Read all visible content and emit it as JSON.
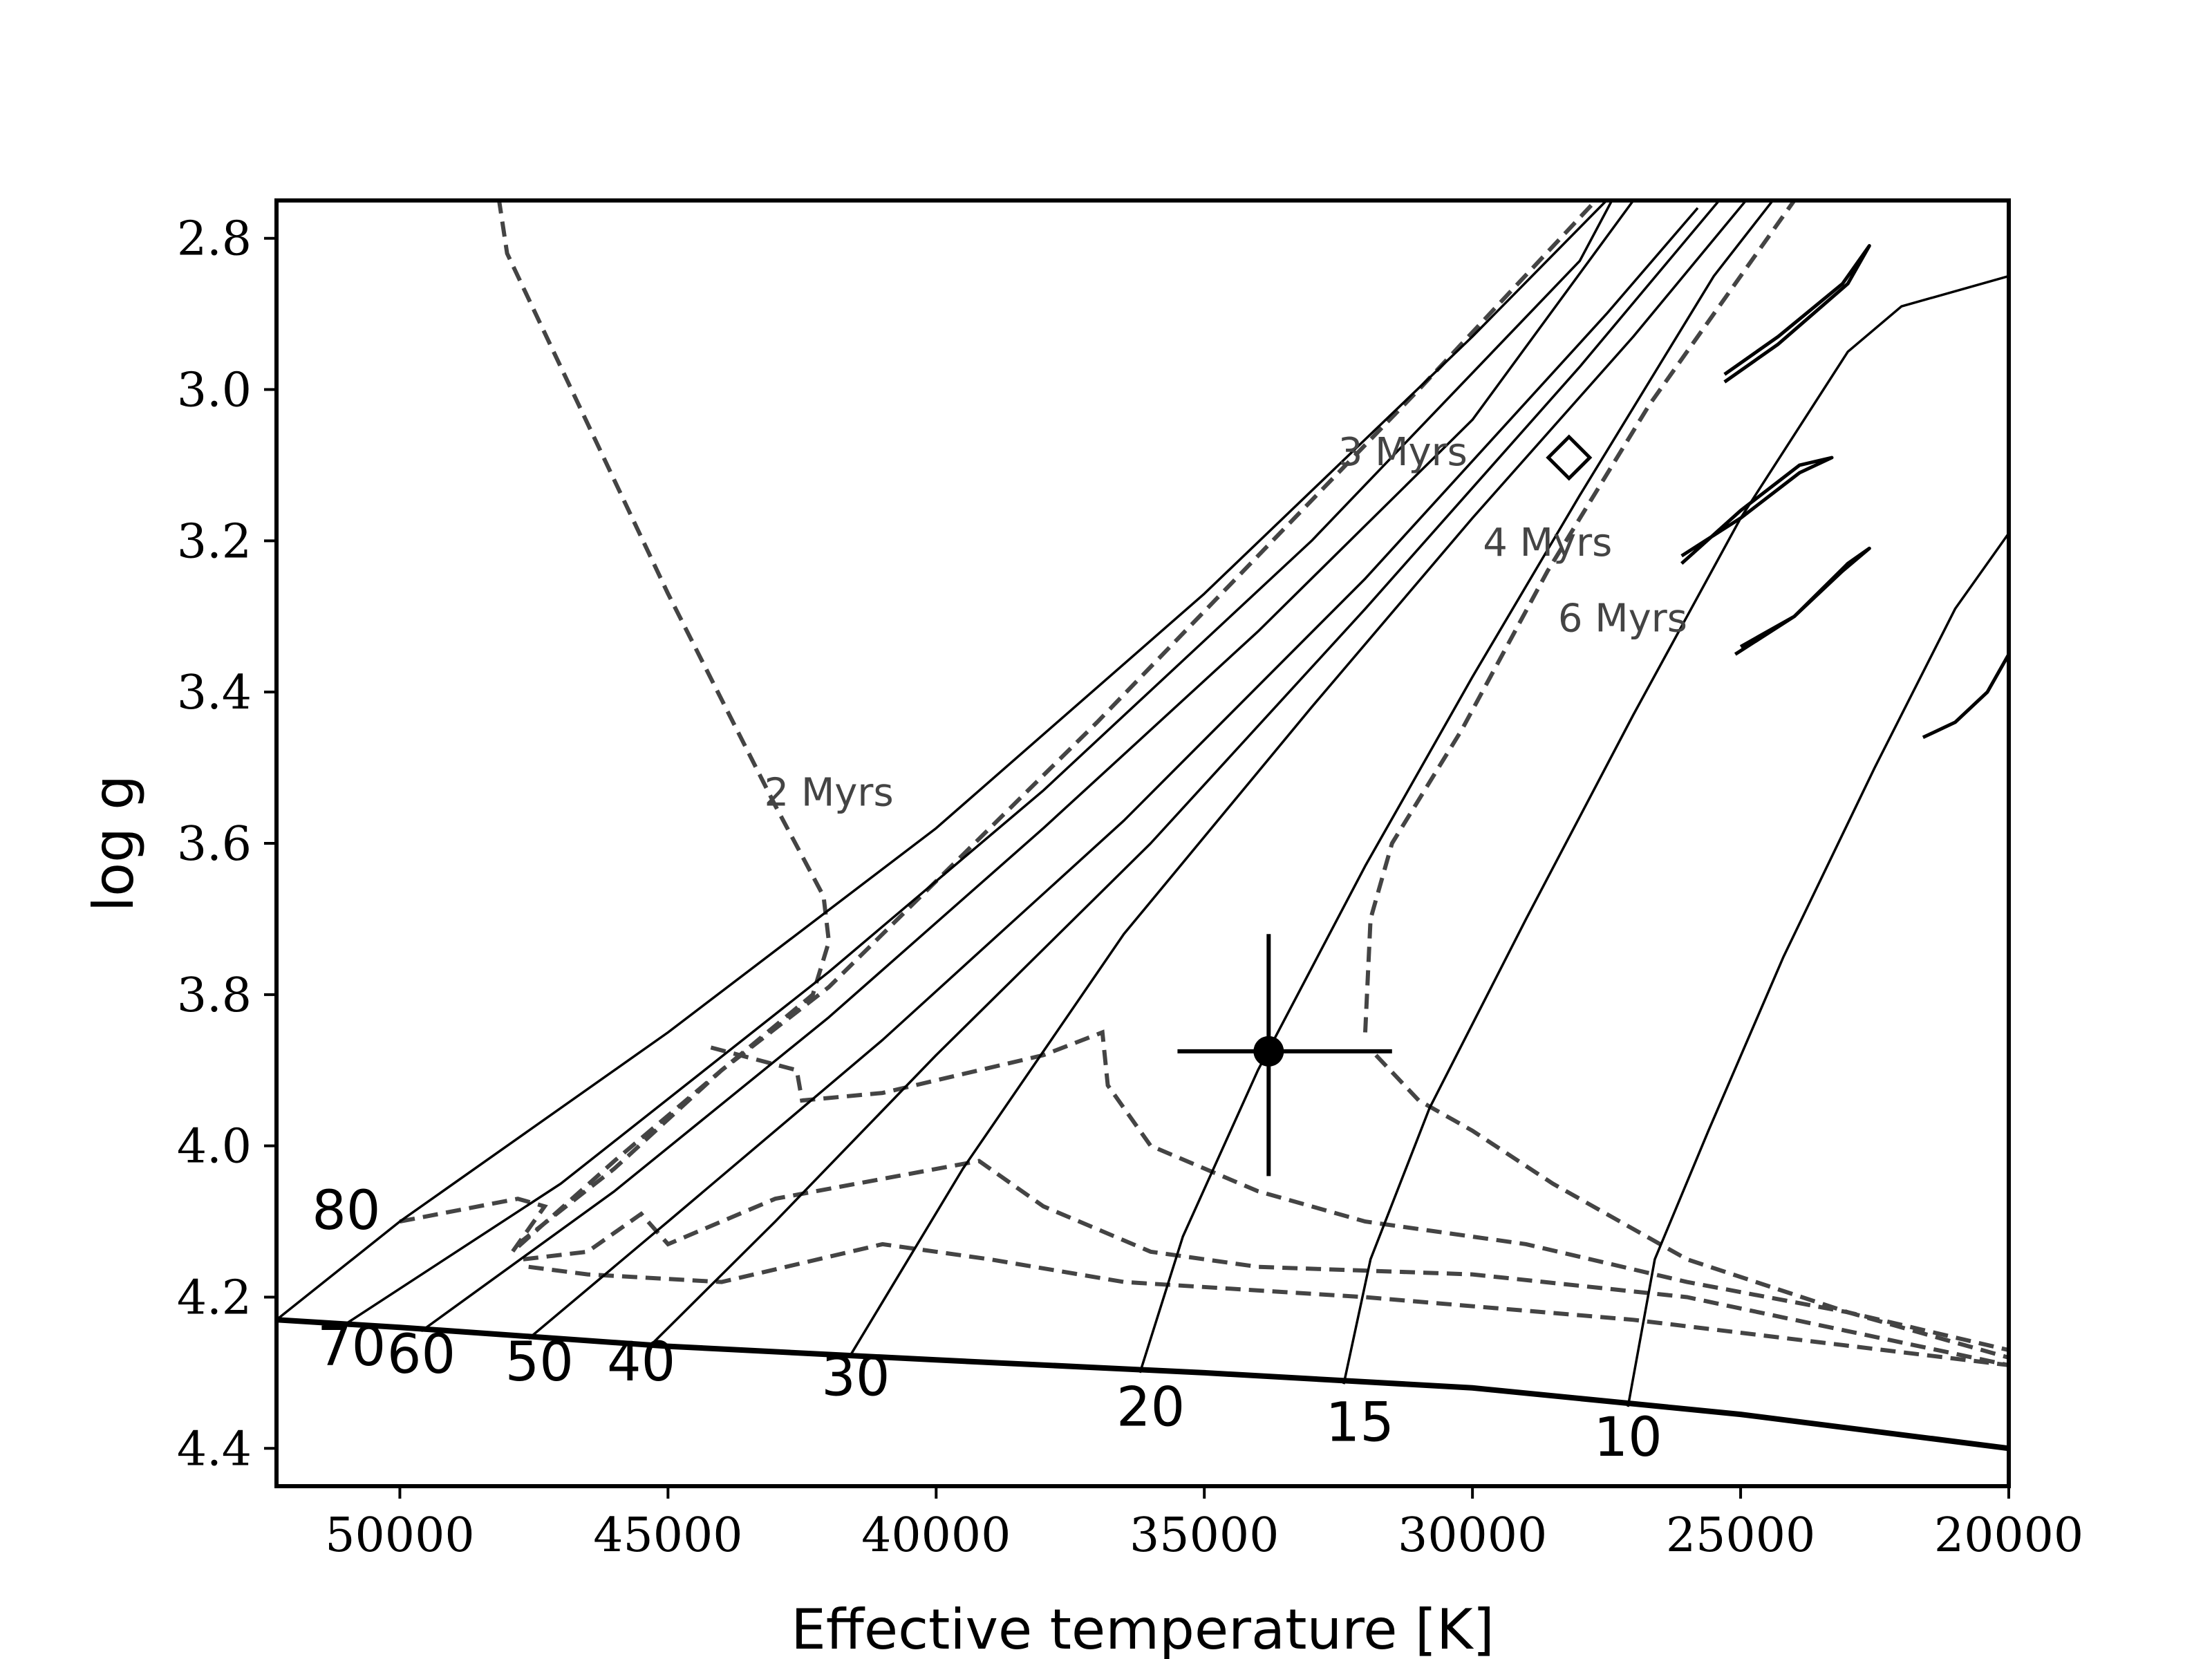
{
  "chart_data": {
    "type": "line",
    "title": "",
    "xlabel": "Effective temperature [K]",
    "ylabel": "log g",
    "xlim": [
      52300,
      20000
    ],
    "ylim": [
      4.45,
      2.75
    ],
    "xticks": [
      50000,
      45000,
      40000,
      35000,
      30000,
      25000,
      20000
    ],
    "yticks": [
      2.8,
      3.0,
      3.2,
      3.4,
      3.6,
      3.8,
      4.0,
      4.2,
      4.4
    ],
    "xtick_labels": [
      "50000",
      "45000",
      "40000",
      "35000",
      "30000",
      "25000",
      "20000"
    ],
    "ytick_labels": [
      "2.8",
      "3.0",
      "3.2",
      "3.4",
      "3.6",
      "3.8",
      "4.0",
      "4.2",
      "4.4"
    ],
    "colors": {
      "tracks": "#000000",
      "isochrones": "#444444",
      "zams": "#000000"
    },
    "zams": [
      [
        52300,
        4.23
      ],
      [
        50000,
        4.24
      ],
      [
        45000,
        4.265
      ],
      [
        40000,
        4.283
      ],
      [
        35000,
        4.3
      ],
      [
        30000,
        4.32
      ],
      [
        25000,
        4.355
      ],
      [
        20000,
        4.4
      ]
    ],
    "tracks": [
      {
        "mass": "80",
        "label": "80",
        "points": [
          [
            52300,
            4.23
          ],
          [
            50000,
            4.1
          ],
          [
            45000,
            3.85
          ],
          [
            40000,
            3.58
          ],
          [
            35000,
            3.27
          ],
          [
            30000,
            2.93
          ],
          [
            27500,
            2.75
          ]
        ]
      },
      {
        "mass": "70",
        "label": "70",
        "points": [
          [
            51000,
            4.235
          ],
          [
            47000,
            4.05
          ],
          [
            42000,
            3.77
          ],
          [
            38000,
            3.53
          ],
          [
            33000,
            3.2
          ],
          [
            28000,
            2.83
          ],
          [
            27400,
            2.75
          ]
        ]
      },
      {
        "mass": "60",
        "label": "60",
        "points": [
          [
            49600,
            4.245
          ],
          [
            46000,
            4.06
          ],
          [
            42000,
            3.83
          ],
          [
            38000,
            3.58
          ],
          [
            34000,
            3.32
          ],
          [
            30000,
            3.04
          ],
          [
            27000,
            2.75
          ]
        ]
      },
      {
        "mass": "50",
        "label": "50",
        "points": [
          [
            47600,
            4.255
          ],
          [
            45000,
            4.1
          ],
          [
            41000,
            3.86
          ],
          [
            36500,
            3.57
          ],
          [
            32000,
            3.25
          ],
          [
            27500,
            2.9
          ],
          [
            25800,
            2.76
          ]
        ]
      },
      {
        "mass": "40",
        "label": "40",
        "points": [
          [
            45300,
            4.262
          ],
          [
            43000,
            4.1
          ],
          [
            40000,
            3.88
          ],
          [
            36000,
            3.6
          ],
          [
            32000,
            3.29
          ],
          [
            28000,
            2.97
          ],
          [
            25400,
            2.75
          ]
        ]
      },
      {
        "mass": "30",
        "label": "30",
        "points": [
          [
            41600,
            4.277
          ],
          [
            39500,
            4.03
          ],
          [
            36500,
            3.72
          ],
          [
            33000,
            3.42
          ],
          [
            30000,
            3.17
          ],
          [
            27000,
            2.93
          ],
          [
            24900,
            2.75
          ]
        ]
      },
      {
        "mass": "20",
        "label": "20",
        "points": [
          [
            36200,
            4.3
          ],
          [
            35400,
            4.12
          ],
          [
            34000,
            3.9
          ],
          [
            32000,
            3.63
          ],
          [
            30000,
            3.38
          ],
          [
            28000,
            3.14
          ],
          [
            25500,
            2.85
          ],
          [
            24400,
            2.75
          ]
        ]
      },
      {
        "mass": "15",
        "label": "15",
        "points": [
          [
            32400,
            4.315
          ],
          [
            31900,
            4.15
          ],
          [
            30800,
            3.95
          ],
          [
            29000,
            3.7
          ],
          [
            27000,
            3.43
          ],
          [
            25000,
            3.17
          ],
          [
            23000,
            2.95
          ],
          [
            22000,
            2.89
          ],
          [
            20000,
            2.85
          ]
        ]
      },
      {
        "mass": "10",
        "label": "10",
        "points": [
          [
            27100,
            4.345
          ],
          [
            26600,
            4.15
          ],
          [
            25600,
            3.98
          ],
          [
            24200,
            3.75
          ],
          [
            22500,
            3.5
          ],
          [
            21000,
            3.29
          ],
          [
            20000,
            3.19
          ]
        ]
      }
    ],
    "loops": [
      [
        [
          25300,
          2.99
        ],
        [
          24300,
          2.94
        ],
        [
          23000,
          2.86
        ],
        [
          22600,
          2.81
        ],
        [
          23100,
          2.86
        ],
        [
          24300,
          2.93
        ],
        [
          25300,
          2.98
        ]
      ],
      [
        [
          26100,
          3.23
        ],
        [
          25000,
          3.16
        ],
        [
          23900,
          3.1
        ],
        [
          23300,
          3.09
        ],
        [
          23900,
          3.11
        ],
        [
          25000,
          3.17
        ],
        [
          26100,
          3.22
        ]
      ],
      [
        [
          25100,
          3.35
        ],
        [
          24000,
          3.3
        ],
        [
          23000,
          3.23
        ],
        [
          22600,
          3.21
        ],
        [
          23100,
          3.24
        ],
        [
          24000,
          3.3
        ],
        [
          25000,
          3.34
        ]
      ],
      [
        [
          21600,
          3.46
        ],
        [
          21000,
          3.44
        ],
        [
          20400,
          3.4
        ],
        [
          20000,
          3.35
        ]
      ]
    ],
    "isochrones": [
      {
        "name": "2 Myrs",
        "label": "2 Myrs",
        "points": [
          [
            50000,
            4.1
          ],
          [
            47800,
            4.07
          ],
          [
            47300,
            4.08
          ],
          [
            47900,
            4.14
          ],
          [
            46000,
            4.02
          ],
          [
            44000,
            3.9
          ],
          [
            42300,
            3.8
          ],
          [
            42000,
            3.73
          ],
          [
            42100,
            3.67
          ],
          [
            43000,
            3.55
          ],
          [
            45000,
            3.27
          ],
          [
            48000,
            2.82
          ],
          [
            48150,
            2.75
          ]
        ]
      },
      {
        "name": "3 Myrs",
        "label": "3 Myrs",
        "points": [
          [
            47800,
            4.13
          ],
          [
            46000,
            4.03
          ],
          [
            44000,
            3.9
          ],
          [
            42000,
            3.79
          ],
          [
            40000,
            3.65
          ],
          [
            37000,
            3.44
          ],
          [
            34000,
            3.22
          ],
          [
            31000,
            3.0
          ],
          [
            27700,
            2.75
          ]
        ]
      },
      {
        "name": "4 Myrs",
        "label": "4 Myrs",
        "points": [
          [
            47700,
            4.15
          ],
          [
            46500,
            4.14
          ],
          [
            45500,
            4.09
          ],
          [
            45000,
            4.13
          ],
          [
            43000,
            4.07
          ],
          [
            39200,
            4.02
          ],
          [
            38000,
            4.08
          ],
          [
            36000,
            4.14
          ],
          [
            34000,
            4.16
          ],
          [
            30000,
            4.17
          ],
          [
            26000,
            4.2
          ],
          [
            20000,
            4.29
          ]
        ]
      },
      {
        "name": "5 Myrs",
        "label": "",
        "points": [
          [
            47600,
            4.16
          ],
          [
            46500,
            4.17
          ],
          [
            44000,
            4.18
          ],
          [
            41000,
            4.13
          ],
          [
            39000,
            4.15
          ],
          [
            36500,
            4.18
          ],
          [
            32000,
            4.2
          ],
          [
            27000,
            4.23
          ],
          [
            20000,
            4.29
          ]
        ]
      },
      {
        "name": "6 Myrs",
        "label": "6 Myrs",
        "points": [
          [
            44200,
            3.87
          ],
          [
            42600,
            3.9
          ],
          [
            42500,
            3.94
          ],
          [
            41000,
            3.93
          ],
          [
            38000,
            3.88
          ],
          [
            36900,
            3.85
          ],
          [
            36800,
            3.92
          ],
          [
            36000,
            4.0
          ],
          [
            34000,
            4.06
          ],
          [
            32000,
            4.1
          ],
          [
            29000,
            4.13
          ],
          [
            26000,
            4.18
          ],
          [
            23000,
            4.22
          ],
          [
            20000,
            4.27
          ]
        ]
      },
      {
        "name": "8 Myrs",
        "label": "",
        "points": [
          [
            32000,
            3.85
          ],
          [
            31900,
            3.7
          ],
          [
            31500,
            3.6
          ],
          [
            30200,
            3.45
          ],
          [
            28600,
            3.24
          ],
          [
            26700,
            3.02
          ],
          [
            24300,
            2.78
          ],
          [
            24000,
            2.75
          ]
        ]
      },
      {
        "name": "8 Myrs tail",
        "label": "",
        "points": [
          [
            31800,
            3.88
          ],
          [
            31000,
            3.94
          ],
          [
            30000,
            3.98
          ],
          [
            28500,
            4.05
          ],
          [
            26000,
            4.15
          ],
          [
            23000,
            4.22
          ],
          [
            20000,
            4.28
          ]
        ]
      }
    ],
    "mass_labels": [
      {
        "text": "80",
        "teff": 51000,
        "logg": 4.11
      },
      {
        "text": "70",
        "teff": 50900,
        "logg": 4.29
      },
      {
        "text": "60",
        "teff": 49600,
        "logg": 4.3
      },
      {
        "text": "50",
        "teff": 47400,
        "logg": 4.31
      },
      {
        "text": "40",
        "teff": 45500,
        "logg": 4.31
      },
      {
        "text": "30",
        "teff": 41500,
        "logg": 4.33
      },
      {
        "text": "20",
        "teff": 36000,
        "logg": 4.37
      },
      {
        "text": "15",
        "teff": 32100,
        "logg": 4.39
      },
      {
        "text": "10",
        "teff": 27100,
        "logg": 4.41
      }
    ],
    "isochrone_labels": [
      {
        "text": "2 Myrs",
        "teff": 42000,
        "logg": 3.55
      },
      {
        "text": "3 Myrs",
        "teff": 31300,
        "logg": 3.1
      },
      {
        "text": "4 Myrs",
        "teff": 28600,
        "logg": 3.22
      },
      {
        "text": "6 Myrs",
        "teff": 27200,
        "logg": 3.32
      }
    ],
    "star": {
      "teff": 33800,
      "logg": 3.875,
      "teff_err": [
        1700,
        2300
      ],
      "logg_err": [
        0.155,
        0.165
      ]
    },
    "diamond": {
      "teff": 28200,
      "logg": 3.09
    }
  }
}
